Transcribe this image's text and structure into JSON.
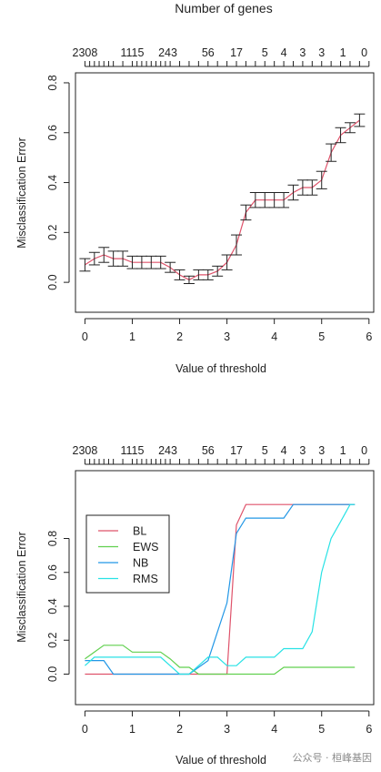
{
  "chart_data": [
    {
      "type": "line",
      "title": "Number of genes",
      "xlabel": "Value of threshold",
      "ylabel": "Misclassification Error",
      "xlim": [
        -0.2,
        6.1
      ],
      "ylim": [
        -0.12,
        0.84
      ],
      "x_ticks": [
        0,
        1,
        2,
        3,
        4,
        5,
        6
      ],
      "y_ticks": [
        0.0,
        0.2,
        0.4,
        0.6,
        0.8
      ],
      "top_axis_labels": [
        {
          "x": 0.0,
          "label": "2308"
        },
        {
          "x": 1.0,
          "label": "1115"
        },
        {
          "x": 1.75,
          "label": "243"
        },
        {
          "x": 2.6,
          "label": "56"
        },
        {
          "x": 3.2,
          "label": "17"
        },
        {
          "x": 3.8,
          "label": "5"
        },
        {
          "x": 4.2,
          "label": "4"
        },
        {
          "x": 4.6,
          "label": "3"
        },
        {
          "x": 5.0,
          "label": "3"
        },
        {
          "x": 5.45,
          "label": "1"
        },
        {
          "x": 5.9,
          "label": "0"
        }
      ],
      "top_minor_ticks": [
        0.0,
        0.1,
        0.2,
        0.3,
        0.4,
        0.5,
        0.6,
        0.8,
        1.0,
        1.1,
        1.2,
        1.3,
        1.4,
        1.5,
        1.6,
        1.7,
        1.8,
        2.0,
        2.2,
        2.4,
        2.6,
        2.8,
        3.0,
        3.2,
        3.4,
        3.6,
        3.8,
        4.0,
        4.2,
        4.4,
        4.6,
        4.8,
        5.0,
        5.2,
        5.4,
        5.6,
        5.8,
        6.0
      ],
      "grid": false,
      "series": [
        {
          "color": "#DF536B",
          "x": [
            0.0,
            0.2,
            0.4,
            0.6,
            0.8,
            1.0,
            1.2,
            1.4,
            1.6,
            1.8,
            2.0,
            2.2,
            2.4,
            2.6,
            2.8,
            3.0,
            3.2,
            3.4,
            3.6,
            3.8,
            4.0,
            4.2,
            4.4,
            4.6,
            4.8,
            5.0,
            5.2,
            5.4,
            5.6,
            5.8
          ],
          "y": [
            0.07,
            0.095,
            0.11,
            0.095,
            0.095,
            0.08,
            0.08,
            0.08,
            0.08,
            0.06,
            0.03,
            0.01,
            0.03,
            0.03,
            0.045,
            0.08,
            0.15,
            0.28,
            0.33,
            0.33,
            0.33,
            0.33,
            0.36,
            0.38,
            0.38,
            0.41,
            0.52,
            0.59,
            0.62,
            0.65
          ],
          "err": [
            0.025,
            0.025,
            0.03,
            0.03,
            0.03,
            0.025,
            0.025,
            0.025,
            0.025,
            0.02,
            0.02,
            0.015,
            0.02,
            0.02,
            0.02,
            0.03,
            0.04,
            0.03,
            0.03,
            0.03,
            0.03,
            0.03,
            0.03,
            0.03,
            0.03,
            0.035,
            0.035,
            0.03,
            0.02,
            0.025
          ]
        }
      ]
    },
    {
      "type": "line",
      "title": "",
      "xlabel": "Value of threshold",
      "ylabel": "Misclassification Error",
      "xlim": [
        -0.2,
        6.1
      ],
      "ylim": [
        -0.18,
        1.2
      ],
      "x_ticks": [
        0,
        1,
        2,
        3,
        4,
        5,
        6
      ],
      "y_ticks": [
        0.0,
        0.2,
        0.4,
        0.6,
        0.8
      ],
      "top_axis_labels": [
        {
          "x": 0.0,
          "label": "2308"
        },
        {
          "x": 1.0,
          "label": "1115"
        },
        {
          "x": 1.75,
          "label": "243"
        },
        {
          "x": 2.6,
          "label": "56"
        },
        {
          "x": 3.2,
          "label": "17"
        },
        {
          "x": 3.8,
          "label": "5"
        },
        {
          "x": 4.2,
          "label": "4"
        },
        {
          "x": 4.6,
          "label": "3"
        },
        {
          "x": 5.0,
          "label": "3"
        },
        {
          "x": 5.45,
          "label": "1"
        },
        {
          "x": 5.9,
          "label": "0"
        }
      ],
      "top_minor_ticks": [
        0.0,
        0.1,
        0.2,
        0.3,
        0.4,
        0.5,
        0.6,
        0.8,
        1.0,
        1.1,
        1.2,
        1.3,
        1.4,
        1.5,
        1.6,
        1.7,
        1.8,
        2.0,
        2.2,
        2.4,
        2.6,
        2.8,
        3.0,
        3.2,
        3.4,
        3.6,
        3.8,
        4.0,
        4.2,
        4.4,
        4.6,
        4.8,
        5.0,
        5.2,
        5.4,
        5.6,
        5.8,
        6.0
      ],
      "grid": false,
      "legend_position": "top-left",
      "series": [
        {
          "name": "BL",
          "color": "#DF536B",
          "x": [
            0.0,
            0.2,
            0.4,
            0.6,
            0.8,
            1.0,
            1.2,
            1.4,
            1.6,
            1.8,
            2.0,
            2.2,
            2.4,
            2.6,
            2.8,
            3.0,
            3.2,
            3.4,
            3.6,
            3.8,
            4.0,
            4.2,
            4.4,
            4.6,
            4.8,
            5.0,
            5.2,
            5.4,
            5.6,
            5.7
          ],
          "y": [
            0.0,
            0.0,
            0.0,
            0.0,
            0.0,
            0.0,
            0.0,
            0.0,
            0.0,
            0.0,
            0.0,
            0.0,
            0.0,
            0.0,
            0.0,
            0.0,
            0.88,
            1.0,
            1.0,
            1.0,
            1.0,
            1.0,
            1.0,
            1.0,
            1.0,
            1.0,
            1.0,
            1.0,
            1.0,
            1.0
          ]
        },
        {
          "name": "EWS",
          "color": "#61D04F",
          "x": [
            0.0,
            0.2,
            0.4,
            0.6,
            0.8,
            1.0,
            1.2,
            1.4,
            1.6,
            1.8,
            2.0,
            2.2,
            2.4,
            2.6,
            2.8,
            3.0,
            3.2,
            3.4,
            3.6,
            3.8,
            4.0,
            4.2,
            4.4,
            4.6,
            4.8,
            5.0,
            5.2,
            5.4,
            5.6,
            5.7
          ],
          "y": [
            0.09,
            0.13,
            0.17,
            0.17,
            0.17,
            0.13,
            0.13,
            0.13,
            0.13,
            0.09,
            0.04,
            0.04,
            0.0,
            0.0,
            0.0,
            0.0,
            0.0,
            0.0,
            0.0,
            0.0,
            0.0,
            0.04,
            0.04,
            0.04,
            0.04,
            0.04,
            0.04,
            0.04,
            0.04,
            0.04
          ]
        },
        {
          "name": "NB",
          "color": "#2297E6",
          "x": [
            0.0,
            0.2,
            0.4,
            0.6,
            0.8,
            1.0,
            1.2,
            1.4,
            1.6,
            1.8,
            2.0,
            2.2,
            2.4,
            2.6,
            2.8,
            3.0,
            3.2,
            3.4,
            3.6,
            3.8,
            4.0,
            4.2,
            4.4,
            4.6,
            4.8,
            5.0,
            5.2,
            5.4,
            5.6,
            5.7
          ],
          "y": [
            0.08,
            0.08,
            0.08,
            0.0,
            0.0,
            0.0,
            0.0,
            0.0,
            0.0,
            0.0,
            0.0,
            0.0,
            0.04,
            0.08,
            0.25,
            0.42,
            0.83,
            0.92,
            0.92,
            0.92,
            0.92,
            0.92,
            1.0,
            1.0,
            1.0,
            1.0,
            1.0,
            1.0,
            1.0,
            1.0
          ]
        },
        {
          "name": "RMS",
          "color": "#28E2E5",
          "x": [
            0.0,
            0.2,
            0.4,
            0.6,
            0.8,
            1.0,
            1.2,
            1.4,
            1.6,
            1.8,
            2.0,
            2.2,
            2.4,
            2.6,
            2.8,
            3.0,
            3.2,
            3.4,
            3.6,
            3.8,
            4.0,
            4.2,
            4.4,
            4.6,
            4.8,
            5.0,
            5.2,
            5.4,
            5.6,
            5.7
          ],
          "y": [
            0.05,
            0.1,
            0.1,
            0.1,
            0.1,
            0.1,
            0.1,
            0.1,
            0.1,
            0.05,
            0.0,
            0.0,
            0.05,
            0.1,
            0.1,
            0.05,
            0.05,
            0.1,
            0.1,
            0.1,
            0.1,
            0.15,
            0.15,
            0.15,
            0.25,
            0.6,
            0.8,
            0.9,
            1.0,
            1.0
          ]
        }
      ]
    }
  ],
  "watermark": "公众号 · 桓峰基因"
}
